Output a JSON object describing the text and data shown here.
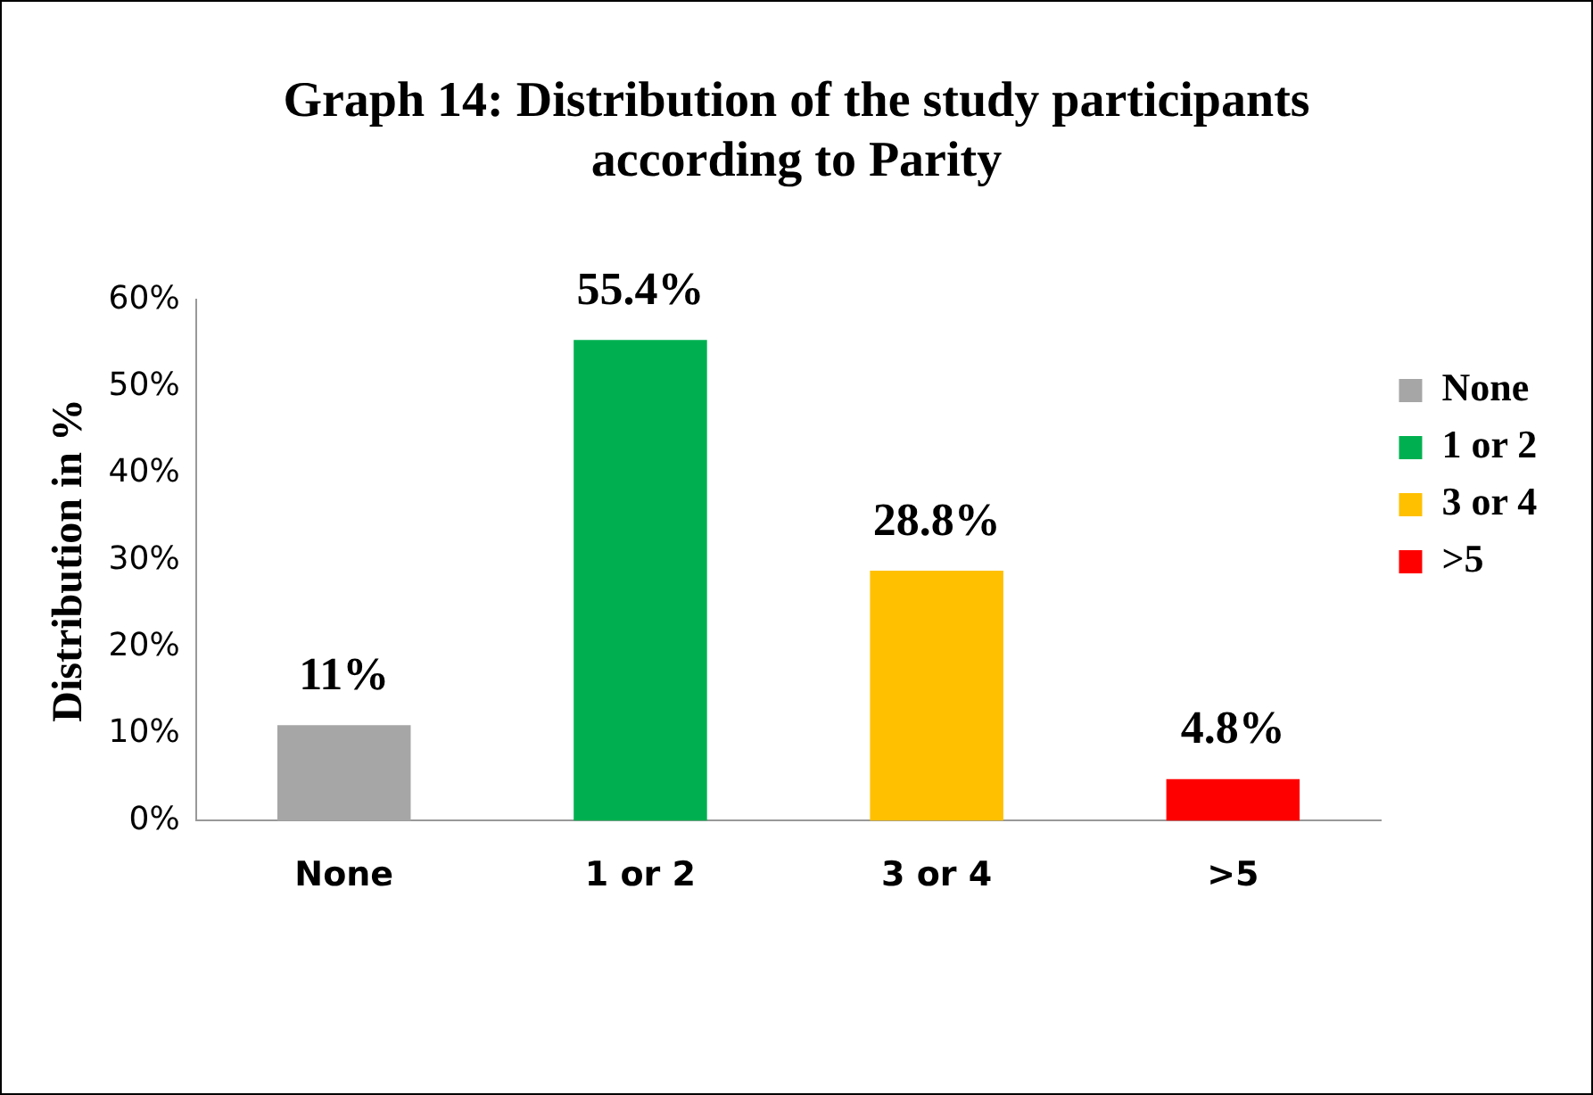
{
  "chart_data": {
    "type": "bar",
    "title": "Graph 14: Distribution of the study participants according to Parity",
    "ylabel": "Distribution in %",
    "categories": [
      "None",
      "1 or 2",
      "3 or 4",
      ">5"
    ],
    "series": [
      {
        "name": "None",
        "color": "#a6a6a6",
        "values": [
          11,
          null,
          null,
          null
        ],
        "value_labels": [
          "11%",
          null,
          null,
          null
        ]
      },
      {
        "name": "1 or 2",
        "color": "#00b050",
        "values": [
          null,
          55.4,
          null,
          null
        ],
        "value_labels": [
          null,
          "55.4%",
          null,
          null
        ]
      },
      {
        "name": "3 or 4",
        "color": "#ffc000",
        "values": [
          null,
          null,
          28.8,
          null
        ],
        "value_labels": [
          null,
          null,
          "28.8%",
          null
        ]
      },
      {
        "name": ">5",
        "color": "#ff0000",
        "values": [
          null,
          null,
          null,
          4.8
        ],
        "value_labels": [
          null,
          null,
          null,
          "4.8%"
        ]
      }
    ],
    "ylim": [
      0,
      60
    ],
    "yticks": [
      {
        "value": 0,
        "label": "0%"
      },
      {
        "value": 10,
        "label": "10%"
      },
      {
        "value": 20,
        "label": "20%"
      },
      {
        "value": 30,
        "label": "30%"
      },
      {
        "value": 40,
        "label": "40%"
      },
      {
        "value": 50,
        "label": "50%"
      },
      {
        "value": 60,
        "label": "60%"
      }
    ],
    "grid": false,
    "legend": "right"
  }
}
